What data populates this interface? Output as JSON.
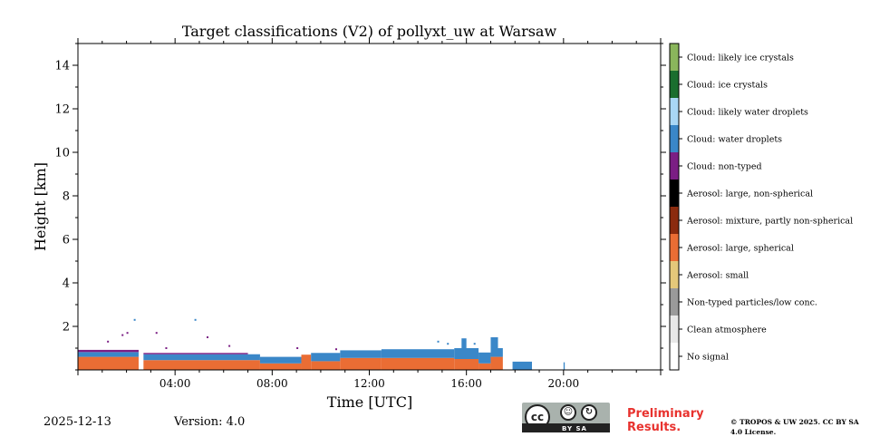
{
  "chart_data": {
    "type": "heatmap",
    "title": "Target classifications (V2) of pollyxt_uw at Warsaw",
    "xlabel": "Time [UTC]",
    "ylabel": "Height [km]",
    "xlim": [
      0,
      24
    ],
    "ylim": [
      0,
      15
    ],
    "xtick_labels": [
      {
        "value": 4,
        "label": "04:00"
      },
      {
        "value": 8,
        "label": "08:00"
      },
      {
        "value": 12,
        "label": "12:00"
      },
      {
        "value": 16,
        "label": "16:00"
      },
      {
        "value": 20,
        "label": "20:00"
      }
    ],
    "ytick_labels": [
      {
        "value": 2,
        "label": "2"
      },
      {
        "value": 4,
        "label": "4"
      },
      {
        "value": 6,
        "label": "6"
      },
      {
        "value": 8,
        "label": "8"
      },
      {
        "value": 10,
        "label": "10"
      },
      {
        "value": 12,
        "label": "12"
      },
      {
        "value": 14,
        "label": "14"
      }
    ],
    "classes": [
      {
        "id": 0,
        "label": "No signal",
        "color": "#ffffff"
      },
      {
        "id": 1,
        "label": "Clean atmosphere",
        "color": "#e8e8e8"
      },
      {
        "id": 2,
        "label": "Non-typed particles/low conc.",
        "color": "#9a9a9a"
      },
      {
        "id": 3,
        "label": "Aerosol: small",
        "color": "#e4c87a"
      },
      {
        "id": 4,
        "label": "Aerosol: large, spherical",
        "color": "#ea6d34"
      },
      {
        "id": 5,
        "label": "Aerosol: mixture, partly non-spherical",
        "color": "#8b2b0e"
      },
      {
        "id": 6,
        "label": "Aerosol: large, non-spherical",
        "color": "#000000"
      },
      {
        "id": 7,
        "label": "Cloud: non-typed",
        "color": "#7b1e84"
      },
      {
        "id": 8,
        "label": "Cloud: water droplets",
        "color": "#3a87c8"
      },
      {
        "id": 9,
        "label": "Cloud: likely water droplets",
        "color": "#a9d7f5"
      },
      {
        "id": 10,
        "label": "Cloud: ice crystals",
        "color": "#1a6e2e"
      },
      {
        "id": 11,
        "label": "Cloud: likely ice crystals",
        "color": "#8ab65c"
      }
    ],
    "layers": [
      {
        "time_start": 0.0,
        "time_end": 2.5,
        "bottom_km": 0.0,
        "top_km": 0.6,
        "class_id": 4
      },
      {
        "time_start": 0.0,
        "time_end": 2.5,
        "bottom_km": 0.6,
        "top_km": 0.82,
        "class_id": 8
      },
      {
        "time_start": 0.0,
        "time_end": 2.5,
        "bottom_km": 0.82,
        "top_km": 0.92,
        "class_id": 7
      },
      {
        "time_start": 2.7,
        "time_end": 7.5,
        "bottom_km": 0.0,
        "top_km": 0.45,
        "class_id": 4
      },
      {
        "time_start": 2.7,
        "time_end": 7.5,
        "bottom_km": 0.45,
        "top_km": 0.72,
        "class_id": 8
      },
      {
        "time_start": 2.7,
        "time_end": 7.0,
        "bottom_km": 0.72,
        "top_km": 0.78,
        "class_id": 7
      },
      {
        "time_start": 7.5,
        "time_end": 9.2,
        "bottom_km": 0.0,
        "top_km": 0.3,
        "class_id": 4
      },
      {
        "time_start": 7.5,
        "time_end": 9.2,
        "bottom_km": 0.3,
        "top_km": 0.6,
        "class_id": 8
      },
      {
        "time_start": 9.2,
        "time_end": 9.6,
        "bottom_km": 0.0,
        "top_km": 0.7,
        "class_id": 4
      },
      {
        "time_start": 9.6,
        "time_end": 10.8,
        "bottom_km": 0.0,
        "top_km": 0.4,
        "class_id": 4
      },
      {
        "time_start": 9.6,
        "time_end": 10.8,
        "bottom_km": 0.4,
        "top_km": 0.78,
        "class_id": 8
      },
      {
        "time_start": 10.8,
        "time_end": 12.5,
        "bottom_km": 0.0,
        "top_km": 0.55,
        "class_id": 4
      },
      {
        "time_start": 10.8,
        "time_end": 12.5,
        "bottom_km": 0.55,
        "top_km": 0.9,
        "class_id": 8
      },
      {
        "time_start": 12.5,
        "time_end": 15.5,
        "bottom_km": 0.0,
        "top_km": 0.55,
        "class_id": 4
      },
      {
        "time_start": 12.5,
        "time_end": 15.5,
        "bottom_km": 0.55,
        "top_km": 0.95,
        "class_id": 8
      },
      {
        "time_start": 15.5,
        "time_end": 16.5,
        "bottom_km": 0.0,
        "top_km": 0.5,
        "class_id": 4
      },
      {
        "time_start": 15.5,
        "time_end": 16.5,
        "bottom_km": 0.5,
        "top_km": 1.0,
        "class_id": 8
      },
      {
        "time_start": 15.8,
        "time_end": 16.0,
        "bottom_km": 1.0,
        "top_km": 1.45,
        "class_id": 8
      },
      {
        "time_start": 16.5,
        "time_end": 17.0,
        "bottom_km": 0.0,
        "top_km": 0.3,
        "class_id": 4
      },
      {
        "time_start": 16.5,
        "time_end": 17.0,
        "bottom_km": 0.3,
        "top_km": 0.8,
        "class_id": 8
      },
      {
        "time_start": 17.0,
        "time_end": 17.5,
        "bottom_km": 0.0,
        "top_km": 0.6,
        "class_id": 4
      },
      {
        "time_start": 17.0,
        "time_end": 17.5,
        "bottom_km": 0.6,
        "top_km": 1.0,
        "class_id": 8
      },
      {
        "time_start": 17.0,
        "time_end": 17.3,
        "bottom_km": 1.0,
        "top_km": 1.5,
        "class_id": 8
      },
      {
        "time_start": 17.9,
        "time_end": 18.7,
        "bottom_km": 0.0,
        "top_km": 0.38,
        "class_id": 8
      },
      {
        "time_start": 20.0,
        "time_end": 20.05,
        "bottom_km": 0.0,
        "top_km": 0.35,
        "class_id": 8
      }
    ],
    "speckles": [
      {
        "t": 2.3,
        "h": 2.3,
        "class_id": 8
      },
      {
        "t": 4.8,
        "h": 2.3,
        "class_id": 8
      },
      {
        "t": 1.2,
        "h": 1.3,
        "class_id": 7
      },
      {
        "t": 1.8,
        "h": 1.6,
        "class_id": 7
      },
      {
        "t": 2.0,
        "h": 1.7,
        "class_id": 7
      },
      {
        "t": 3.2,
        "h": 1.7,
        "class_id": 7
      },
      {
        "t": 3.6,
        "h": 1.0,
        "class_id": 7
      },
      {
        "t": 5.3,
        "h": 1.5,
        "class_id": 7
      },
      {
        "t": 6.2,
        "h": 1.1,
        "class_id": 7
      },
      {
        "t": 9.0,
        "h": 1.0,
        "class_id": 7
      },
      {
        "t": 10.6,
        "h": 0.95,
        "class_id": 7
      },
      {
        "t": 14.8,
        "h": 1.3,
        "class_id": 8
      },
      {
        "t": 15.2,
        "h": 1.2,
        "class_id": 8
      },
      {
        "t": 16.3,
        "h": 1.2,
        "class_id": 8
      }
    ]
  },
  "footer": {
    "date": "2025-12-13",
    "version": "Version: 4.0",
    "preliminary": "Preliminary Results.",
    "copyright": "© TROPOS & UW 2025. CC BY SA 4.0 License.",
    "license_badge": {
      "main": "cc",
      "sub": "BY    SA"
    }
  }
}
